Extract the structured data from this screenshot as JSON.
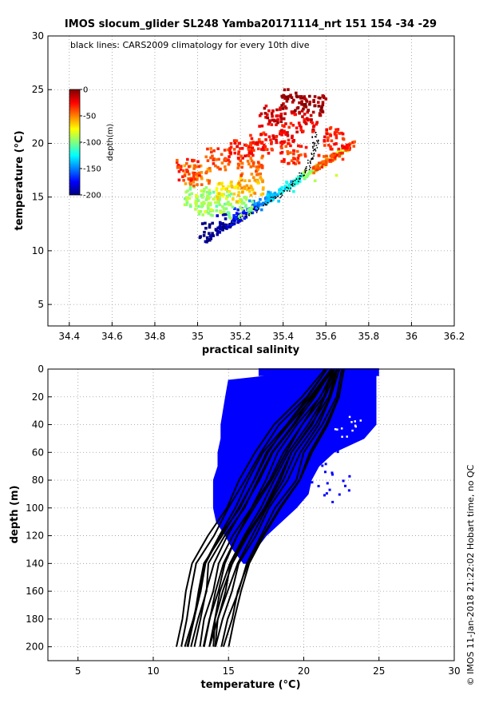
{
  "footer_text": "© IMOS 11-Jan-2018 21:22:02 Hobart time, no QC",
  "chart_data": [
    {
      "type": "scatter",
      "title": "IMOS slocum_glider SL248 Yamba20171114_nrt 151  154  -34  -29",
      "annotation": "black lines: CARS2009 climatology for every 10th dive",
      "xlabel": "practical salinity",
      "ylabel": "temperature (°C)",
      "xlim": [
        34.3,
        36.2
      ],
      "ylim": [
        3,
        30
      ],
      "xticks": [
        "34.4",
        "34.6",
        "34.8",
        "35",
        "35.2",
        "35.4",
        "35.6",
        "35.8",
        "36",
        "36.2"
      ],
      "yticks": [
        "5",
        "10",
        "15",
        "20",
        "25",
        "30"
      ],
      "grid": true,
      "colorbar": {
        "label": "depth(m)",
        "ticks": [
          "0",
          "-50",
          "-100",
          "-150",
          "-200"
        ],
        "range": [
          -200,
          0
        ],
        "colormap": [
          "#00007f",
          "#0000ff",
          "#0080ff",
          "#00ffff",
          "#80ff80",
          "#ffff00",
          "#ff8000",
          "#ff0000",
          "#800000"
        ]
      },
      "series": [
        {
          "kind": "glider observations colored by depth",
          "points": [
            {
              "s": 35.07,
              "t": 11.6,
              "d": -200
            },
            {
              "s": 35.15,
              "t": 12.4,
              "d": -185
            },
            {
              "s": 35.22,
              "t": 13.0,
              "d": -170
            },
            {
              "s": 35.3,
              "t": 13.8,
              "d": -150
            },
            {
              "s": 35.38,
              "t": 14.6,
              "d": -135
            },
            {
              "s": 35.45,
              "t": 15.5,
              "d": -120
            },
            {
              "s": 35.1,
              "t": 14.5,
              "d": -100
            },
            {
              "s": 35.0,
              "t": 15.0,
              "d": -95
            },
            {
              "s": 35.2,
              "t": 14.0,
              "d": -95
            },
            {
              "s": 35.05,
              "t": 14.2,
              "d": -90
            },
            {
              "s": 35.55,
              "t": 16.5,
              "d": -90
            },
            {
              "s": 35.65,
              "t": 17.0,
              "d": -85
            },
            {
              "s": 35.15,
              "t": 15.5,
              "d": -70
            },
            {
              "s": 35.25,
              "t": 16.0,
              "d": -60
            },
            {
              "s": 35.0,
              "t": 17.0,
              "d": -50
            },
            {
              "s": 35.1,
              "t": 18.5,
              "d": -40
            },
            {
              "s": 35.2,
              "t": 19.5,
              "d": -30
            },
            {
              "s": 35.3,
              "t": 20.0,
              "d": -30
            },
            {
              "s": 35.4,
              "t": 21.0,
              "d": -25
            },
            {
              "s": 35.5,
              "t": 22.0,
              "d": -20
            },
            {
              "s": 35.35,
              "t": 22.5,
              "d": -15
            },
            {
              "s": 35.45,
              "t": 24.0,
              "d": -5
            },
            {
              "s": 35.55,
              "t": 23.5,
              "d": -5
            },
            {
              "s": 35.6,
              "t": 18.0,
              "d": -40
            },
            {
              "s": 35.68,
              "t": 18.5,
              "d": -35
            },
            {
              "s": 35.65,
              "t": 20.5,
              "d": -30
            },
            {
              "s": 34.95,
              "t": 17.5,
              "d": -35
            },
            {
              "s": 35.25,
              "t": 17.8,
              "d": -45
            },
            {
              "s": 35.45,
              "t": 19.0,
              "d": -35
            }
          ]
        },
        {
          "kind": "CARS2009 climatology (black lines)",
          "points": [
            {
              "s": 35.12,
              "t": 12.0
            },
            {
              "s": 35.25,
              "t": 13.5
            },
            {
              "s": 35.38,
              "t": 15.0
            },
            {
              "s": 35.46,
              "t": 16.5
            },
            {
              "s": 35.52,
              "t": 18.0
            },
            {
              "s": 35.55,
              "t": 19.5
            },
            {
              "s": 35.55,
              "t": 21.0
            }
          ]
        }
      ]
    },
    {
      "type": "line",
      "xlabel": "temperature (°C)",
      "ylabel": "depth (m)",
      "xlim": [
        3,
        30
      ],
      "ylim": [
        210,
        0
      ],
      "xticks": [
        "5",
        "10",
        "15",
        "20",
        "25",
        "30"
      ],
      "yticks": [
        "0",
        "20",
        "40",
        "60",
        "80",
        "100",
        "120",
        "140",
        "160",
        "180",
        "200"
      ],
      "grid": true,
      "observation_color": "#0000ff",
      "climatology_color": "#000000",
      "observations_envelope": {
        "depth": [
          0,
          5,
          8,
          20,
          40,
          50,
          60,
          70,
          80,
          90,
          100,
          110,
          120,
          130,
          140
        ],
        "min_temperature": [
          17.5,
          17.5,
          15.0,
          14.8,
          14.5,
          14.5,
          14.3,
          14.3,
          14.0,
          14.0,
          14.0,
          14.2,
          14.8,
          15.3,
          16.0
        ],
        "max_temperature": [
          25.0,
          24.8,
          24.8,
          24.8,
          24.8,
          24.0,
          22.0,
          21.0,
          20.5,
          20.3,
          19.5,
          18.5,
          17.5,
          16.8,
          16.3
        ]
      },
      "climatology": {
        "depth": [
          0,
          20,
          40,
          60,
          80,
          100,
          120,
          140,
          160,
          180,
          200
        ],
        "temperature_min": [
          21.5,
          20.0,
          18.2,
          16.8,
          15.8,
          14.9,
          13.7,
          12.7,
          12.4,
          12.0,
          11.6
        ],
        "temperature_max": [
          22.7,
          22.3,
          21.6,
          20.5,
          19.8,
          18.5,
          17.5,
          16.5,
          15.9,
          15.3,
          15.0
        ],
        "profile_count": 18
      }
    }
  ]
}
